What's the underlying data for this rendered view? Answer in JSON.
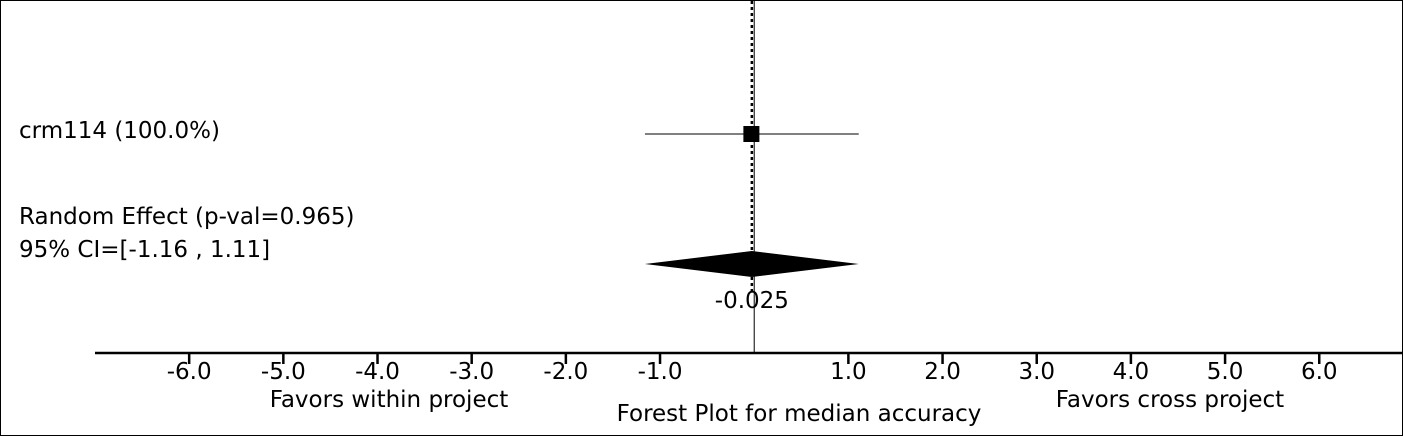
{
  "chart_data": {
    "type": "forest",
    "title": "Forest Plot for median accuracy",
    "xlim": [
      -7.0,
      6.9
    ],
    "ticks": [
      -6.0,
      -5.0,
      -4.0,
      -3.0,
      -2.0,
      -1.0,
      1.0,
      2.0,
      3.0,
      4.0,
      5.0,
      6.0
    ],
    "tick_labels": [
      "-6.0",
      "-5.0",
      "-4.0",
      "-3.0",
      "-2.0",
      "-1.0",
      "1.0",
      "2.0",
      "3.0",
      "4.0",
      "5.0",
      "6.0"
    ],
    "left_label": "Favors within project",
    "right_label": "Favors cross project",
    "studies": [
      {
        "label": "crm114 (100.0%)",
        "estimate": -0.03,
        "ci_low": -1.16,
        "ci_high": 1.11
      }
    ],
    "summary": {
      "label_line1": "Random Effect (p-val=0.965)",
      "label_line2": "95% CI=[-1.16 , 1.11]",
      "estimate": -0.025,
      "estimate_label": "-0.025",
      "ci_low": -1.16,
      "ci_high": 1.11
    },
    "reference_line": 0.0
  }
}
